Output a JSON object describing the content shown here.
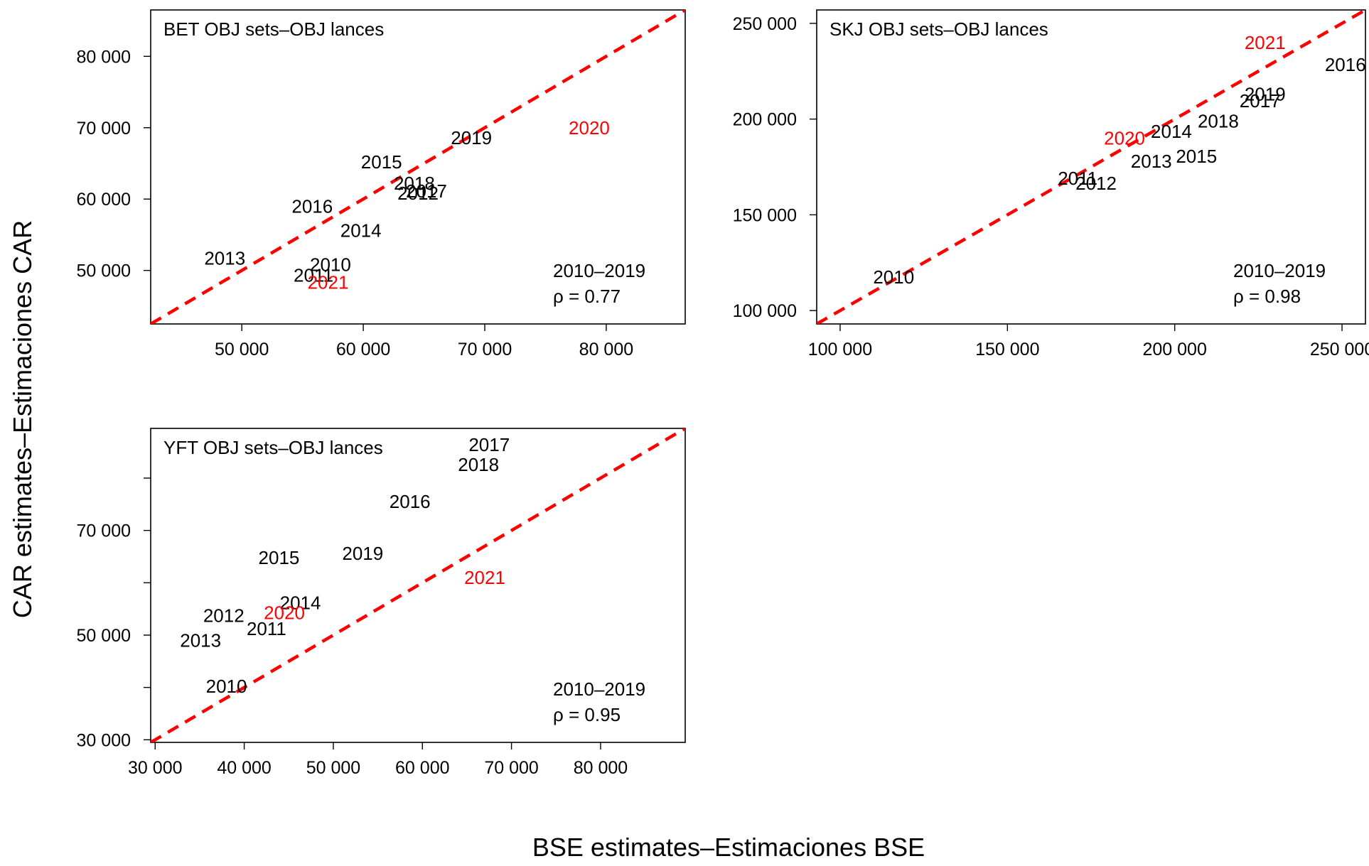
{
  "colors": {
    "highlight": "#ff0000",
    "normal": "#000000",
    "diagonal": "#ff0000"
  },
  "axis_titles": {
    "x": "BSE estimates–Estimaciones BSE",
    "y": "CAR estimates–Estimaciones CAR"
  },
  "chart_data": [
    {
      "type": "scatter",
      "title": "BET OBJ sets–OBJ lances",
      "xlim": [
        42500,
        86500
      ],
      "ylim": [
        42500,
        86500
      ],
      "x_ticks": [
        50000,
        60000,
        70000,
        80000
      ],
      "y_ticks": [
        50000,
        60000,
        70000,
        80000
      ],
      "x_tick_labels": [
        "50 000",
        "60 000",
        "70 000",
        "80 000"
      ],
      "y_tick_labels": [
        "50 000",
        "60 000",
        "70 000",
        "80 000"
      ],
      "diagonal": "y = x",
      "stat_period": "2010–2019",
      "stat_rho": "ρ = 0.77",
      "points": [
        {
          "label": "2010",
          "x": 57300,
          "y": 50800,
          "highlight": false
        },
        {
          "label": "2011",
          "x": 55900,
          "y": 49300,
          "highlight": false
        },
        {
          "label": "2012",
          "x": 64500,
          "y": 60800,
          "highlight": false
        },
        {
          "label": "2013",
          "x": 48600,
          "y": 51700,
          "highlight": false
        },
        {
          "label": "2014",
          "x": 59800,
          "y": 55600,
          "highlight": false
        },
        {
          "label": "2015",
          "x": 61500,
          "y": 65200,
          "highlight": false
        },
        {
          "label": "2016",
          "x": 55800,
          "y": 59000,
          "highlight": false
        },
        {
          "label": "2017",
          "x": 65200,
          "y": 61100,
          "highlight": false
        },
        {
          "label": "2018",
          "x": 64200,
          "y": 62200,
          "highlight": false
        },
        {
          "label": "2019",
          "x": 68900,
          "y": 68600,
          "highlight": false
        },
        {
          "label": "2020",
          "x": 78600,
          "y": 70000,
          "highlight": true
        },
        {
          "label": "2021",
          "x": 57100,
          "y": 48300,
          "highlight": true
        }
      ]
    },
    {
      "type": "scatter",
      "title": "SKJ OBJ sets–OBJ lances",
      "xlim": [
        93000,
        257000
      ],
      "ylim": [
        93000,
        257000
      ],
      "x_ticks": [
        100000,
        150000,
        200000,
        250000
      ],
      "y_ticks": [
        100000,
        150000,
        200000,
        250000
      ],
      "x_tick_labels": [
        "100 000",
        "150 000",
        "200 000",
        "250 000"
      ],
      "y_tick_labels": [
        "100 000",
        "150 000",
        "200 000",
        "250 000"
      ],
      "diagonal": "y = x",
      "stat_period": "2010–2019",
      "stat_rho": "ρ = 0.98",
      "points": [
        {
          "label": "2010",
          "x": 116000,
          "y": 117500,
          "highlight": false
        },
        {
          "label": "2011",
          "x": 171000,
          "y": 169000,
          "highlight": false
        },
        {
          "label": "2012",
          "x": 176500,
          "y": 166500,
          "highlight": false
        },
        {
          "label": "2013",
          "x": 193000,
          "y": 178000,
          "highlight": false
        },
        {
          "label": "2014",
          "x": 199000,
          "y": 193500,
          "highlight": false
        },
        {
          "label": "2015",
          "x": 206500,
          "y": 180500,
          "highlight": false
        },
        {
          "label": "2016",
          "x": 251000,
          "y": 228500,
          "highlight": false
        },
        {
          "label": "2017",
          "x": 225500,
          "y": 209500,
          "highlight": false
        },
        {
          "label": "2018",
          "x": 213000,
          "y": 199000,
          "highlight": false
        },
        {
          "label": "2019",
          "x": 227000,
          "y": 213000,
          "highlight": false
        },
        {
          "label": "2020",
          "x": 185000,
          "y": 190000,
          "highlight": true
        },
        {
          "label": "2021",
          "x": 227000,
          "y": 240000,
          "highlight": true
        }
      ]
    },
    {
      "type": "scatter",
      "title": "YFT OBJ sets–OBJ lances",
      "xlim": [
        29500,
        89500
      ],
      "ylim": [
        29500,
        89500
      ],
      "x_ticks": [
        30000,
        40000,
        50000,
        60000,
        70000,
        80000
      ],
      "y_ticks": [
        30000,
        40000,
        50000,
        60000,
        70000,
        80000
      ],
      "x_tick_labels": [
        "30 000",
        "40 000",
        "50 000",
        "60 000",
        "70 000",
        "80 000"
      ],
      "y_tick_labels": [
        "30 000",
        "",
        "50 000",
        "",
        "70 000",
        ""
      ],
      "diagonal": "y = x",
      "stat_period": "2010–2019",
      "stat_rho": "ρ = 0.95",
      "points": [
        {
          "label": "2010",
          "x": 38000,
          "y": 40200,
          "highlight": false
        },
        {
          "label": "2011",
          "x": 42500,
          "y": 51200,
          "highlight": false
        },
        {
          "label": "2012",
          "x": 37700,
          "y": 53700,
          "highlight": false
        },
        {
          "label": "2013",
          "x": 35100,
          "y": 49000,
          "highlight": false
        },
        {
          "label": "2014",
          "x": 46300,
          "y": 56200,
          "highlight": false
        },
        {
          "label": "2015",
          "x": 43900,
          "y": 64800,
          "highlight": false
        },
        {
          "label": "2016",
          "x": 58600,
          "y": 75500,
          "highlight": false
        },
        {
          "label": "2017",
          "x": 67500,
          "y": 86400,
          "highlight": false
        },
        {
          "label": "2018",
          "x": 66300,
          "y": 82600,
          "highlight": false
        },
        {
          "label": "2019",
          "x": 53300,
          "y": 65600,
          "highlight": false
        },
        {
          "label": "2020",
          "x": 44500,
          "y": 54300,
          "highlight": true
        },
        {
          "label": "2021",
          "x": 67000,
          "y": 61000,
          "highlight": true
        }
      ]
    }
  ]
}
